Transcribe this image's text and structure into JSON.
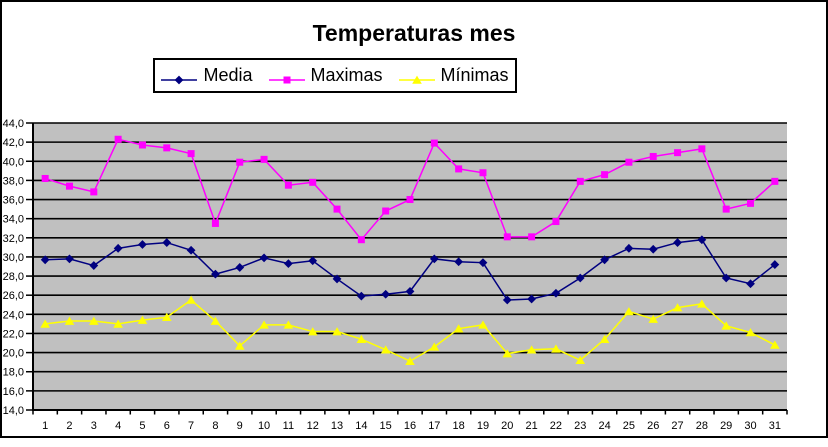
{
  "window": {
    "background": "#FFFFFF",
    "border_color": "#000000",
    "plot_background": "#C0C0C0",
    "gridline_color": "#000000"
  },
  "chart_data": {
    "type": "line",
    "title": "Temperaturas mes",
    "xlabel": "",
    "ylabel": "",
    "ylim": [
      14,
      44
    ],
    "ytick_step": 2,
    "decimal_separator": ",",
    "grid": "horizontal",
    "legend_position": "top",
    "plot_bg": "#C0C0C0",
    "categories": [
      1,
      2,
      3,
      4,
      5,
      6,
      7,
      8,
      9,
      10,
      11,
      12,
      13,
      14,
      15,
      16,
      17,
      18,
      19,
      20,
      21,
      22,
      23,
      24,
      25,
      26,
      27,
      28,
      29,
      30,
      31
    ],
    "x_tick_labels": [
      "1",
      "2",
      "3",
      "4",
      "5",
      "6",
      "7",
      "8",
      "9",
      "10",
      "11",
      "12",
      "13",
      "14",
      "15",
      "16",
      "17",
      "18",
      "19",
      "20",
      "21",
      "22",
      "23",
      "24",
      "25",
      "26",
      "27",
      "28",
      "29",
      "30",
      "31"
    ],
    "y_tick_labels": [
      "44,0",
      "42,0",
      "40,0",
      "38,0",
      "36,0",
      "34,0",
      "32,0",
      "30,0",
      "28,0",
      "26,0",
      "24,0",
      "22,0",
      "20,0",
      "18,0",
      "16,0",
      "14,0"
    ],
    "series": [
      {
        "name": "Media",
        "color": "#000080",
        "marker": "diamond",
        "values": [
          29.7,
          29.8,
          29.1,
          30.9,
          31.3,
          31.5,
          30.7,
          28.2,
          28.9,
          29.9,
          29.3,
          29.6,
          27.7,
          25.9,
          26.1,
          26.4,
          29.8,
          29.5,
          29.4,
          25.5,
          25.6,
          26.2,
          27.8,
          29.7,
          30.9,
          30.8,
          31.5,
          31.8,
          27.8,
          27.2,
          29.2
        ]
      },
      {
        "name": "Maximas",
        "color": "#FF00FF",
        "marker": "square",
        "values": [
          38.2,
          37.4,
          36.8,
          42.3,
          41.7,
          41.4,
          40.8,
          33.5,
          39.9,
          40.2,
          37.5,
          37.8,
          35.0,
          31.8,
          34.8,
          36.0,
          41.9,
          39.2,
          38.8,
          32.1,
          32.1,
          33.7,
          37.9,
          38.6,
          39.9,
          40.5,
          40.9,
          41.3,
          35.0,
          35.6,
          37.9
        ]
      },
      {
        "name": "Mínimas",
        "color": "#FFFF00",
        "marker": "triangle",
        "values": [
          23.0,
          23.3,
          23.3,
          23.0,
          23.4,
          23.7,
          25.5,
          23.3,
          20.7,
          22.9,
          22.9,
          22.2,
          22.2,
          21.4,
          20.3,
          19.1,
          20.6,
          22.5,
          22.9,
          19.9,
          20.3,
          20.4,
          19.2,
          21.4,
          24.3,
          23.5,
          24.7,
          25.1,
          22.8,
          22.1,
          20.8
        ]
      }
    ]
  }
}
